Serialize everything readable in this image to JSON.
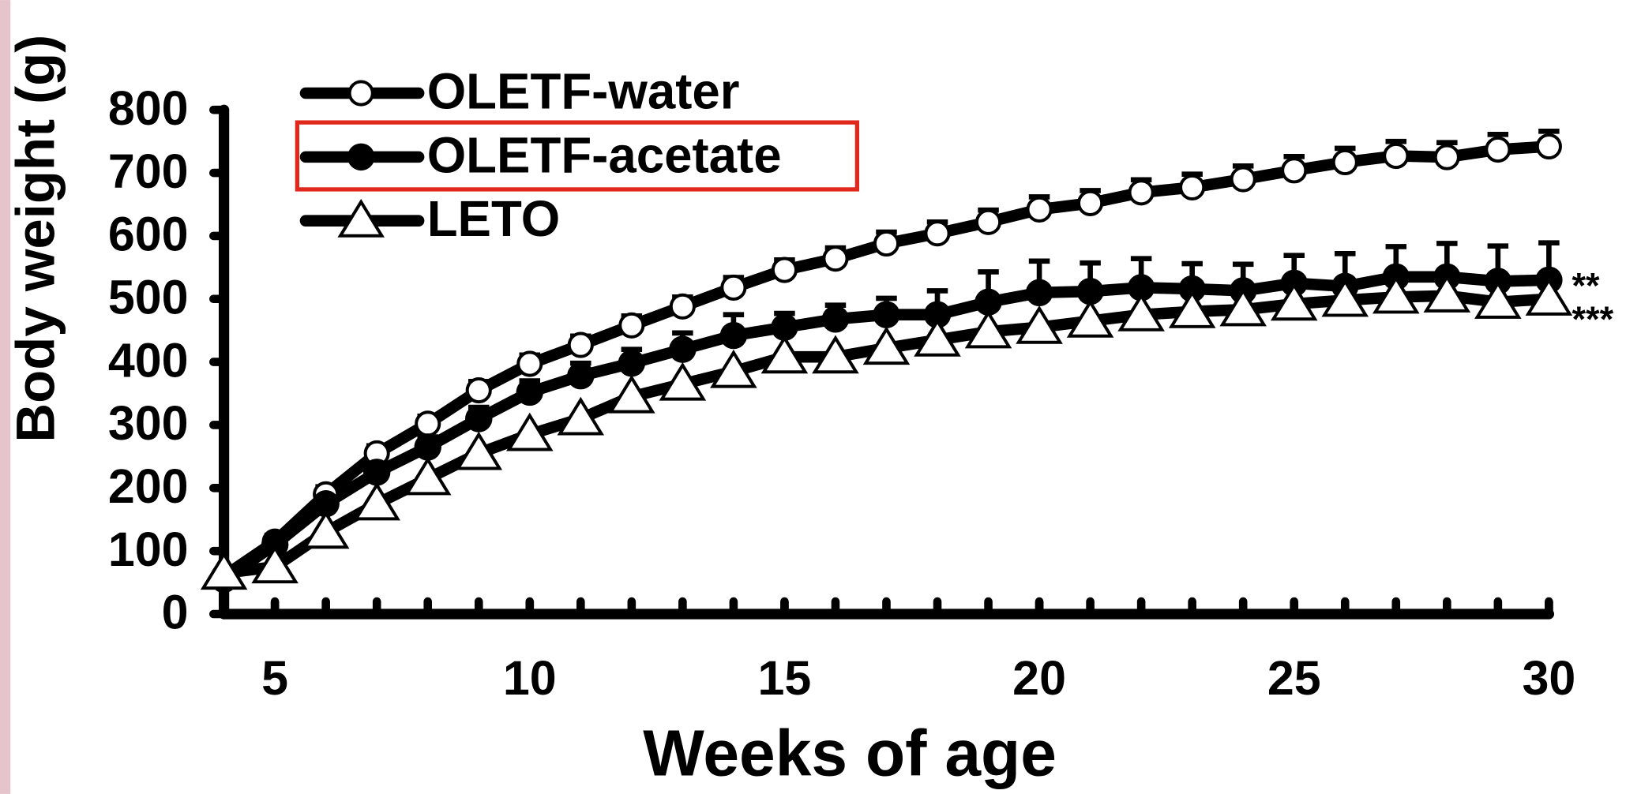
{
  "chart_data": {
    "type": "line",
    "xlabel": "Weeks of age",
    "ylabel": "Body weight (g)",
    "x": [
      4,
      5,
      6,
      7,
      8,
      9,
      10,
      11,
      12,
      13,
      14,
      15,
      16,
      17,
      18,
      19,
      20,
      21,
      22,
      23,
      24,
      25,
      26,
      27,
      28,
      29,
      30
    ],
    "series": [
      {
        "name": "OLETF-water",
        "color": "#000000",
        "marker": "open-circle",
        "values": [
          60,
          115,
          190,
          255,
          302,
          355,
          397,
          427,
          458,
          488,
          518,
          546,
          564,
          588,
          604,
          622,
          642,
          652,
          669,
          677,
          690,
          704,
          717,
          727,
          725,
          737,
          742
        ],
        "errors": [
          8,
          10,
          12,
          12,
          12,
          14,
          14,
          14,
          15,
          15,
          16,
          16,
          17,
          18,
          18,
          19,
          20,
          20,
          20,
          21,
          21,
          22,
          22,
          23,
          23,
          24,
          24
        ]
      },
      {
        "name": "OLETF-acetate",
        "color": "#000000",
        "marker": "filled-circle",
        "values": [
          55,
          110,
          175,
          225,
          265,
          310,
          352,
          378,
          398,
          420,
          442,
          455,
          468,
          475,
          475,
          495,
          510,
          512,
          518,
          516,
          513,
          525,
          520,
          535,
          535,
          528,
          530
        ],
        "errors": [
          8,
          10,
          12,
          14,
          16,
          18,
          18,
          20,
          22,
          26,
          33,
          22,
          22,
          26,
          38,
          48,
          50,
          45,
          46,
          40,
          42,
          44,
          52,
          48,
          53,
          56,
          59
        ]
      },
      {
        "name": "LETO",
        "color": "#000000",
        "marker": "open-triangle",
        "values": [
          65,
          75,
          130,
          175,
          215,
          255,
          285,
          310,
          345,
          365,
          385,
          408,
          408,
          422,
          435,
          448,
          455,
          465,
          475,
          480,
          483,
          492,
          498,
          503,
          505,
          495,
          500
        ]
      }
    ],
    "annotations": [
      {
        "text": "**",
        "series": 1
      },
      {
        "text": "***",
        "series": 2
      }
    ],
    "xlim": [
      4,
      30
    ],
    "xticks": [
      5,
      10,
      15,
      20,
      25,
      30
    ],
    "ylim": [
      0,
      800
    ],
    "yticks": [
      0,
      100,
      200,
      300,
      400,
      500,
      600,
      700,
      800
    ],
    "legend": "upper left",
    "grid": false
  }
}
